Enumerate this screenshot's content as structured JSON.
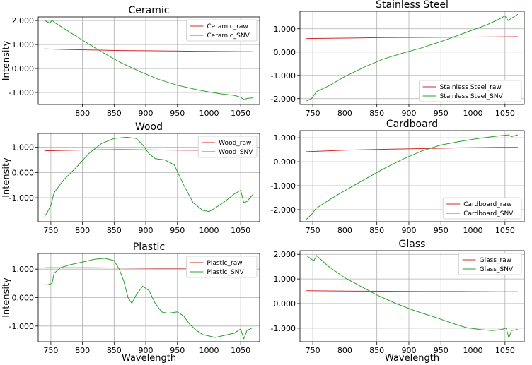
{
  "figure": {
    "xlabel": "Wavelength",
    "ylabel": "Intensity"
  },
  "chart_data": [
    {
      "type": "line",
      "title": "Ceramic",
      "xlabel": "",
      "ylabel": "Intensity",
      "xlim": [
        730,
        1080
      ],
      "ylim": [
        -1.5,
        2.15
      ],
      "xticks": [
        800,
        850,
        900,
        950,
        1000,
        1050
      ],
      "xtick_labels": [
        "800",
        "850",
        "900",
        "950",
        "1000",
        "1050"
      ],
      "yticks": [
        -1,
        0,
        1,
        2
      ],
      "ytick_labels": [
        "-1.000",
        "0.000",
        "1.000",
        "2.000"
      ],
      "grid": true,
      "legend_position": "top-right",
      "series": [
        {
          "name": "Ceramic_raw",
          "color": "#d62728",
          "x": [
            740,
            780,
            820,
            860,
            900,
            940,
            980,
            1020,
            1070
          ],
          "y": [
            0.82,
            0.79,
            0.77,
            0.75,
            0.74,
            0.73,
            0.72,
            0.71,
            0.7
          ]
        },
        {
          "name": "Ceramic_SNV",
          "color": "#2ca02c",
          "x": [
            740,
            748,
            752,
            758,
            775,
            800,
            830,
            860,
            890,
            920,
            950,
            980,
            1000,
            1020,
            1040,
            1050,
            1055,
            1060,
            1070
          ],
          "y": [
            2.0,
            1.9,
            2.0,
            1.88,
            1.6,
            1.18,
            0.7,
            0.25,
            -0.12,
            -0.45,
            -0.7,
            -0.88,
            -0.98,
            -1.06,
            -1.12,
            -1.2,
            -1.3,
            -1.25,
            -1.22
          ]
        }
      ]
    },
    {
      "type": "line",
      "title": "Stainless Steel",
      "xlabel": "",
      "ylabel": "",
      "xlim": [
        730,
        1080
      ],
      "ylim": [
        -2.25,
        1.75
      ],
      "xticks": [
        750,
        800,
        850,
        900,
        950,
        1000,
        1050
      ],
      "xtick_labels": [
        "750",
        "800",
        "850",
        "900",
        "950",
        "1000",
        "1050"
      ],
      "yticks": [
        -2,
        -1,
        0,
        1
      ],
      "ytick_labels": [
        "-2.000",
        "-1.000",
        "0.000",
        "1.000"
      ],
      "grid": true,
      "legend_position": "bottom-right",
      "series": [
        {
          "name": "Stainless Steel_raw",
          "color": "#d62728",
          "x": [
            740,
            800,
            860,
            920,
            980,
            1040,
            1070
          ],
          "y": [
            0.58,
            0.6,
            0.62,
            0.63,
            0.64,
            0.65,
            0.66
          ]
        },
        {
          "name": "Stainless Steel_SNV",
          "color": "#2ca02c",
          "x": [
            740,
            748,
            752,
            756,
            775,
            800,
            830,
            860,
            890,
            920,
            950,
            980,
            1000,
            1020,
            1040,
            1050,
            1055,
            1060,
            1070
          ],
          "y": [
            -2.1,
            -2.0,
            -1.85,
            -1.7,
            -1.45,
            -1.05,
            -0.65,
            -0.3,
            -0.05,
            0.18,
            0.45,
            0.75,
            0.95,
            1.15,
            1.4,
            1.55,
            1.35,
            1.45,
            1.62
          ]
        }
      ]
    },
    {
      "type": "line",
      "title": "Wood",
      "xlabel": "",
      "ylabel": "Intensity",
      "xlim": [
        730,
        1080
      ],
      "ylim": [
        -1.95,
        1.55
      ],
      "xticks": [
        750,
        800,
        850,
        900,
        950,
        1000,
        1050
      ],
      "xtick_labels": [
        "750",
        "800",
        "850",
        "900",
        "950",
        "1000",
        "1050"
      ],
      "yticks": [
        -1,
        0,
        1
      ],
      "ytick_labels": [
        "-1.000",
        "0.000",
        "1.000"
      ],
      "grid": true,
      "legend_position": "top-right",
      "series": [
        {
          "name": "Wood_raw",
          "color": "#d62728",
          "x": [
            740,
            780,
            820,
            860,
            900,
            940,
            980,
            1020,
            1070
          ],
          "y": [
            0.86,
            0.88,
            0.9,
            0.91,
            0.9,
            0.89,
            0.88,
            0.87,
            0.86
          ]
        },
        {
          "name": "Wood_SNV",
          "color": "#2ca02c",
          "x": [
            740,
            745,
            750,
            755,
            770,
            790,
            810,
            830,
            850,
            870,
            885,
            895,
            905,
            915,
            930,
            945,
            960,
            975,
            990,
            1000,
            1010,
            1025,
            1040,
            1050,
            1055,
            1060,
            1070
          ],
          "y": [
            -1.75,
            -1.55,
            -1.3,
            -0.8,
            -0.3,
            0.2,
            0.75,
            1.15,
            1.35,
            1.4,
            1.35,
            1.1,
            0.75,
            0.55,
            0.5,
            0.3,
            -0.5,
            -1.2,
            -1.5,
            -1.55,
            -1.4,
            -1.15,
            -0.85,
            -0.7,
            -1.2,
            -1.15,
            -0.85
          ]
        }
      ]
    },
    {
      "type": "line",
      "title": "Cardboard",
      "xlabel": "",
      "ylabel": "",
      "xlim": [
        730,
        1080
      ],
      "ylim": [
        -2.5,
        1.3
      ],
      "xticks": [
        750,
        800,
        850,
        900,
        950,
        1000,
        1050
      ],
      "xtick_labels": [
        "750",
        "800",
        "850",
        "900",
        "950",
        "1000",
        "1050"
      ],
      "yticks": [
        -2,
        -1,
        0,
        1
      ],
      "ytick_labels": [
        "-2.000",
        "-1.000",
        "0.000",
        "1.000"
      ],
      "grid": true,
      "legend_position": "bottom-right",
      "series": [
        {
          "name": "Cardboard_raw",
          "color": "#d62728",
          "x": [
            740,
            800,
            860,
            920,
            980,
            1040,
            1070
          ],
          "y": [
            0.42,
            0.48,
            0.52,
            0.55,
            0.58,
            0.6,
            0.6
          ]
        },
        {
          "name": "Cardboard_SNV",
          "color": "#2ca02c",
          "x": [
            740,
            748,
            755,
            775,
            800,
            830,
            860,
            890,
            920,
            950,
            980,
            1010,
            1040,
            1055,
            1060,
            1070
          ],
          "y": [
            -2.4,
            -2.2,
            -1.95,
            -1.6,
            -1.2,
            -0.75,
            -0.3,
            0.1,
            0.45,
            0.7,
            0.85,
            0.98,
            1.08,
            1.12,
            1.05,
            1.12
          ]
        }
      ]
    },
    {
      "type": "line",
      "title": "Plastic",
      "xlabel": "Wavelength",
      "ylabel": "Intensity",
      "xlim": [
        730,
        1080
      ],
      "ylim": [
        -1.55,
        1.55
      ],
      "xticks": [
        750,
        800,
        850,
        900,
        950,
        1000,
        1050
      ],
      "xtick_labels": [
        "750",
        "800",
        "850",
        "900",
        "950",
        "1000",
        "1050"
      ],
      "yticks": [
        -1,
        0,
        1
      ],
      "ytick_labels": [
        "-1.000",
        "0.000",
        "1.000"
      ],
      "grid": true,
      "legend_position": "top-right",
      "series": [
        {
          "name": "Plastic_raw",
          "color": "#d62728",
          "x": [
            740,
            800,
            860,
            920,
            980,
            1040,
            1070
          ],
          "y": [
            1.05,
            1.05,
            1.04,
            1.03,
            1.03,
            1.02,
            1.02
          ]
        },
        {
          "name": "Plastic_SNV",
          "color": "#2ca02c",
          "x": [
            740,
            745,
            752,
            755,
            765,
            780,
            800,
            820,
            835,
            850,
            858,
            865,
            872,
            878,
            885,
            895,
            905,
            915,
            925,
            935,
            950,
            960,
            970,
            980,
            990,
            1000,
            1010,
            1020,
            1030,
            1040,
            1050,
            1055,
            1060,
            1070
          ],
          "y": [
            0.45,
            0.45,
            0.5,
            0.85,
            1.05,
            1.15,
            1.25,
            1.35,
            1.38,
            1.3,
            1.0,
            0.6,
            0.0,
            -0.2,
            0.1,
            0.4,
            0.25,
            -0.2,
            -0.5,
            -0.55,
            -0.5,
            -0.65,
            -0.95,
            -1.15,
            -1.3,
            -1.35,
            -1.4,
            -1.35,
            -1.3,
            -1.25,
            -1.1,
            -1.45,
            -1.15,
            -1.05
          ]
        }
      ]
    },
    {
      "type": "line",
      "title": "Glass",
      "xlabel": "Wavelength",
      "ylabel": "",
      "xlim": [
        730,
        1080
      ],
      "ylim": [
        -1.55,
        2.15
      ],
      "xticks": [
        750,
        800,
        850,
        900,
        950,
        1000,
        1050
      ],
      "xtick_labels": [
        "750",
        "800",
        "850",
        "900",
        "950",
        "1000",
        "1050"
      ],
      "yticks": [
        -1,
        0,
        1,
        2
      ],
      "ytick_labels": [
        "-1.000",
        "0.000",
        "1.000",
        "2.000"
      ],
      "grid": true,
      "legend_position": "top-right",
      "series": [
        {
          "name": "Glass_raw",
          "color": "#d62728",
          "x": [
            740,
            800,
            860,
            920,
            980,
            1040,
            1070
          ],
          "y": [
            0.52,
            0.51,
            0.5,
            0.49,
            0.49,
            0.48,
            0.48
          ]
        },
        {
          "name": "Glass_SNV",
          "color": "#2ca02c",
          "x": [
            740,
            748,
            752,
            756,
            775,
            800,
            825,
            850,
            880,
            910,
            940,
            970,
            990,
            1010,
            1030,
            1045,
            1052,
            1056,
            1060,
            1070
          ],
          "y": [
            1.95,
            1.8,
            1.75,
            1.95,
            1.5,
            1.05,
            0.7,
            0.35,
            0.0,
            -0.3,
            -0.55,
            -0.82,
            -0.98,
            -1.05,
            -1.1,
            -1.05,
            -1.0,
            -1.4,
            -1.1,
            -1.05
          ]
        }
      ]
    }
  ]
}
